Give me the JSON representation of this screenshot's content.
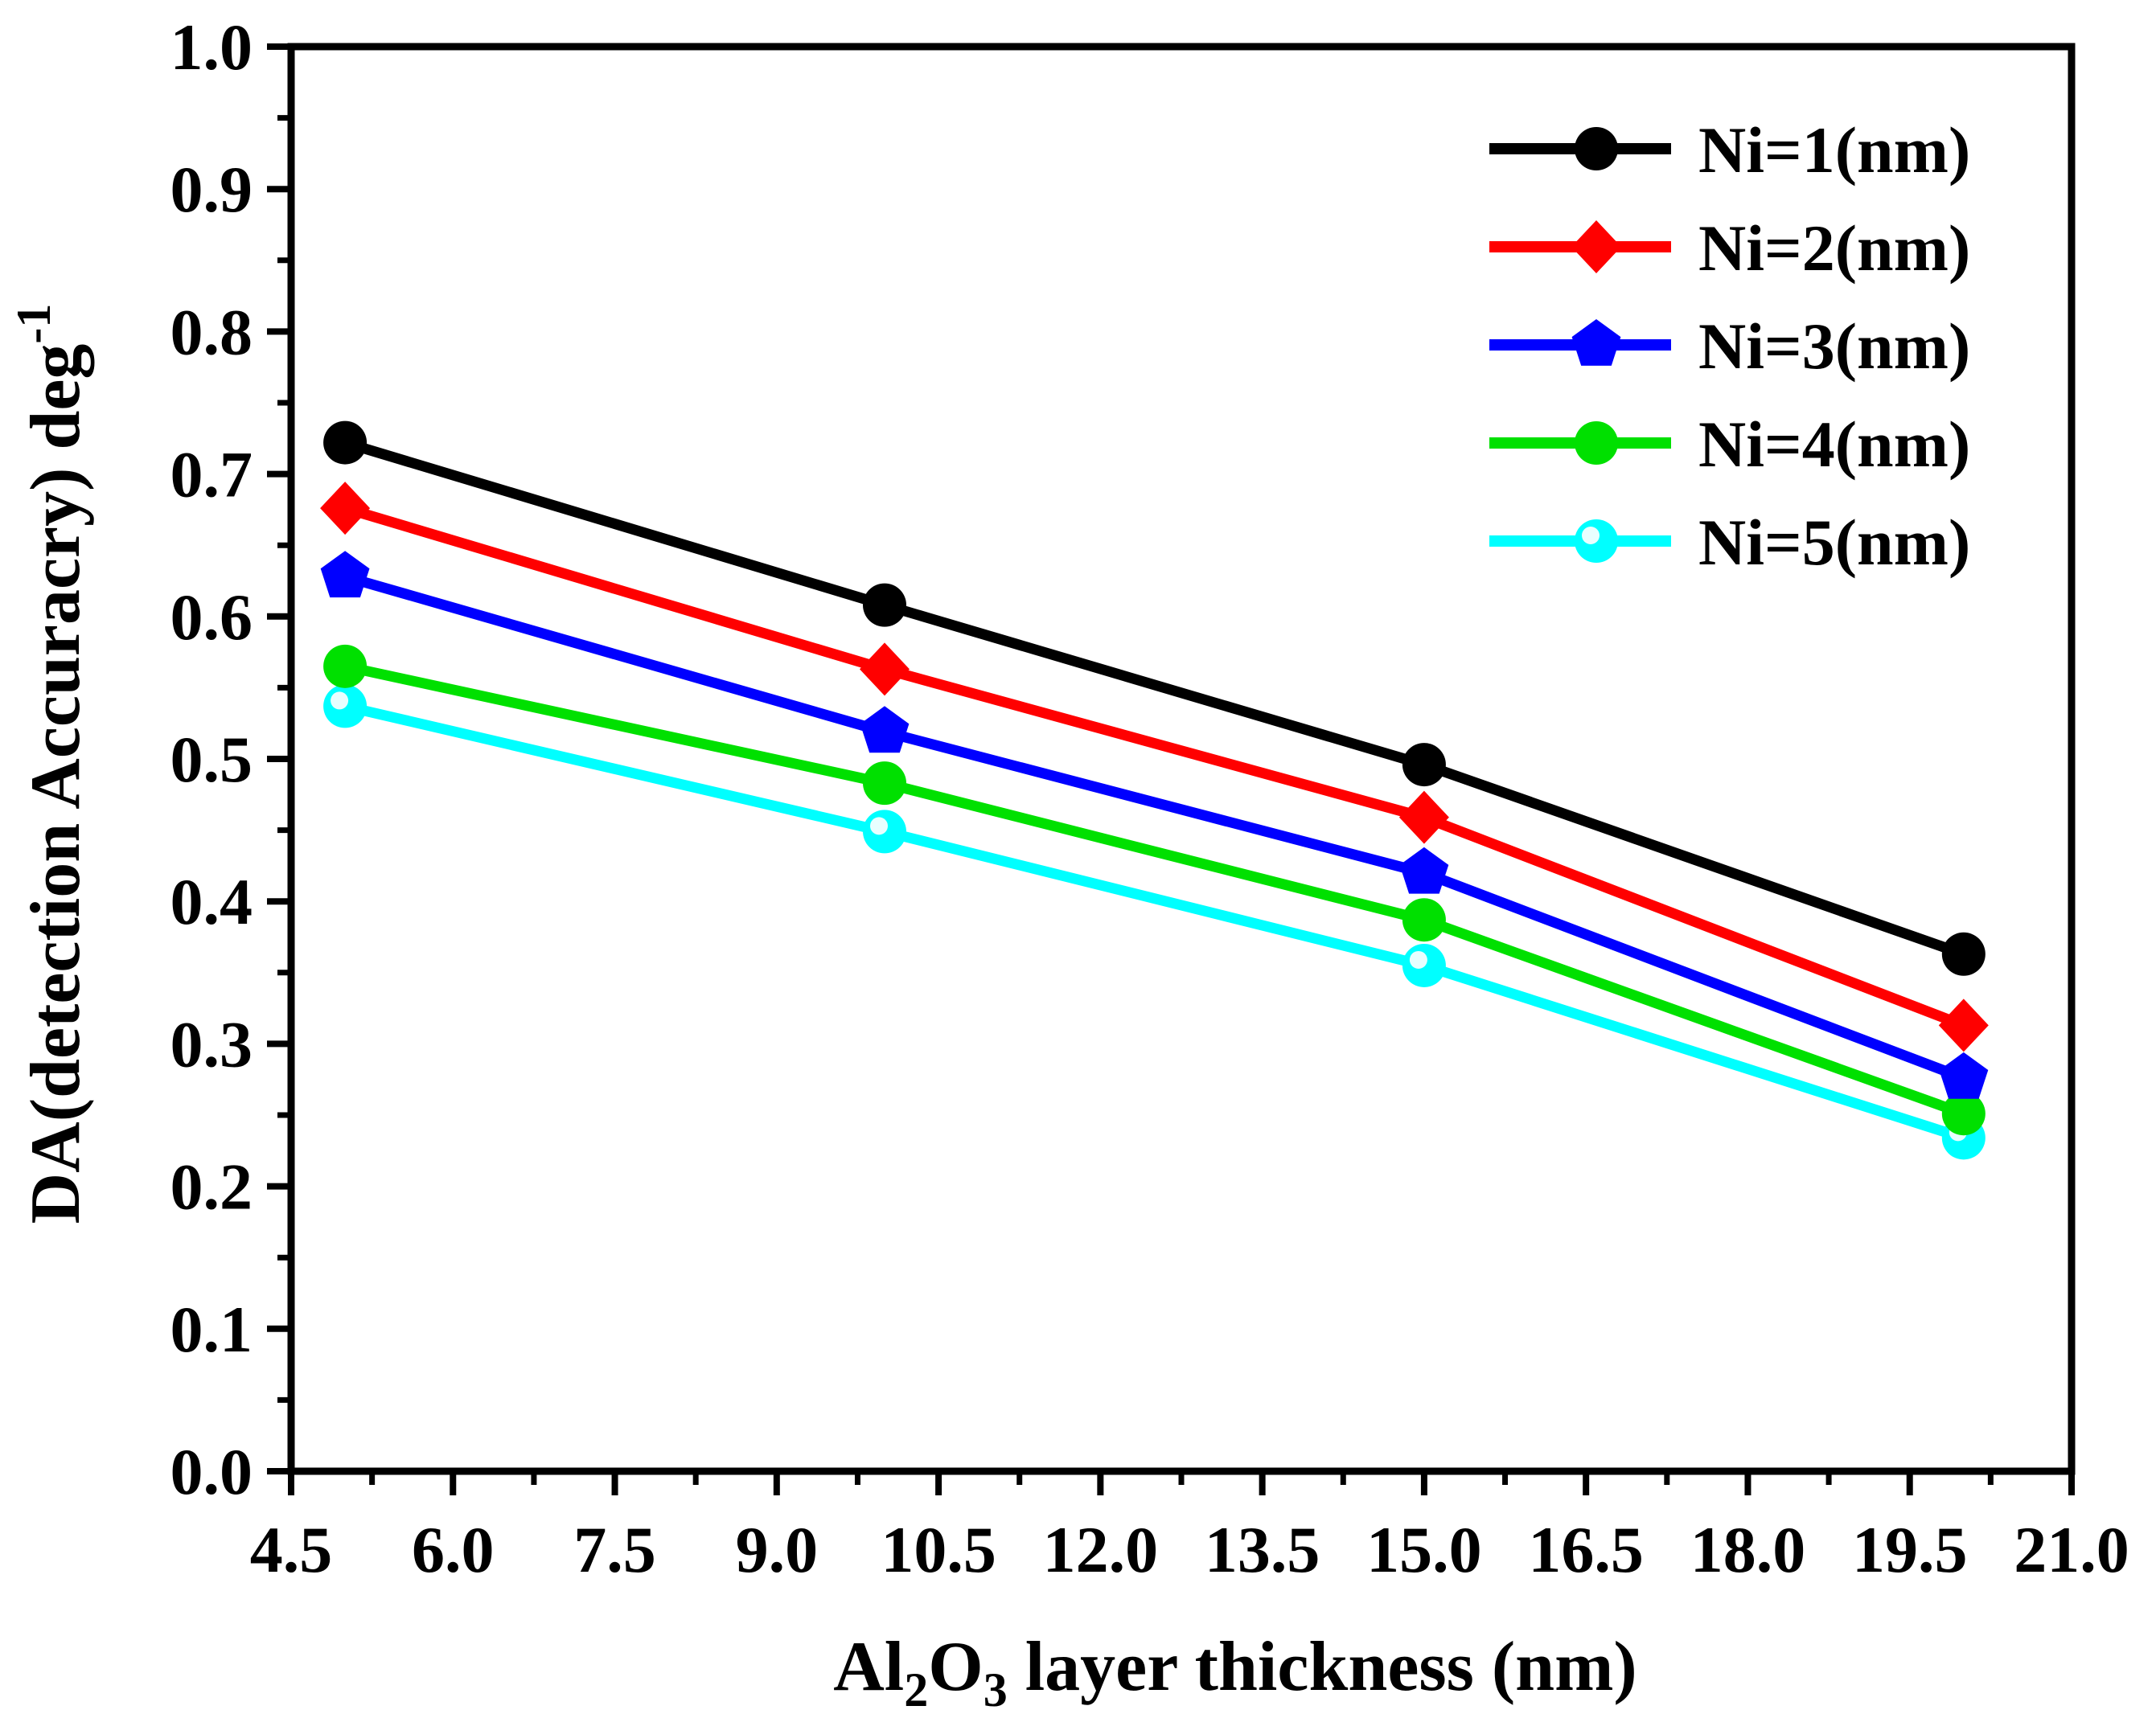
{
  "chart_data": {
    "type": "line",
    "title": "",
    "xlabel": {
      "prefix": "Al",
      "sub1": "2",
      "mid": "O",
      "sub2": "3",
      "suffix": " layer thickness (nm)"
    },
    "ylabel": {
      "main": "DA(detection Accuracry) deg",
      "sup": "-1"
    },
    "xlim": [
      4.5,
      21.0
    ],
    "ylim": [
      0.0,
      1.0
    ],
    "x_ticks": [
      "4.5",
      "6.0",
      "7.5",
      "9.0",
      "10.5",
      "12.0",
      "13.5",
      "15.0",
      "16.5",
      "18.0",
      "19.5",
      "21.0"
    ],
    "y_ticks": [
      "0.0",
      "0.1",
      "0.2",
      "0.3",
      "0.4",
      "0.5",
      "0.6",
      "0.7",
      "0.8",
      "0.9",
      "1.0"
    ],
    "x": [
      5,
      10,
      15,
      20
    ],
    "legend_position": "top-right",
    "series": [
      {
        "name": "Ni=1(nm)",
        "color": "#000000",
        "marker": "circle",
        "values": [
          0.722,
          0.608,
          0.496,
          0.363
        ]
      },
      {
        "name": "Ni=2(nm)",
        "color": "#ff0000",
        "marker": "diamond",
        "values": [
          0.676,
          0.563,
          0.459,
          0.313
        ]
      },
      {
        "name": "Ni=3(nm)",
        "color": "#0000ff",
        "marker": "pentagon",
        "values": [
          0.628,
          0.519,
          0.42,
          0.276
        ]
      },
      {
        "name": "Ni=4(nm)",
        "color": "#00e000",
        "marker": "circle",
        "values": [
          0.565,
          0.483,
          0.387,
          0.251
        ]
      },
      {
        "name": "Ni=5(nm)",
        "color": "#00ffff",
        "marker": "circle",
        "values": [
          0.537,
          0.449,
          0.355,
          0.234
        ]
      }
    ]
  }
}
